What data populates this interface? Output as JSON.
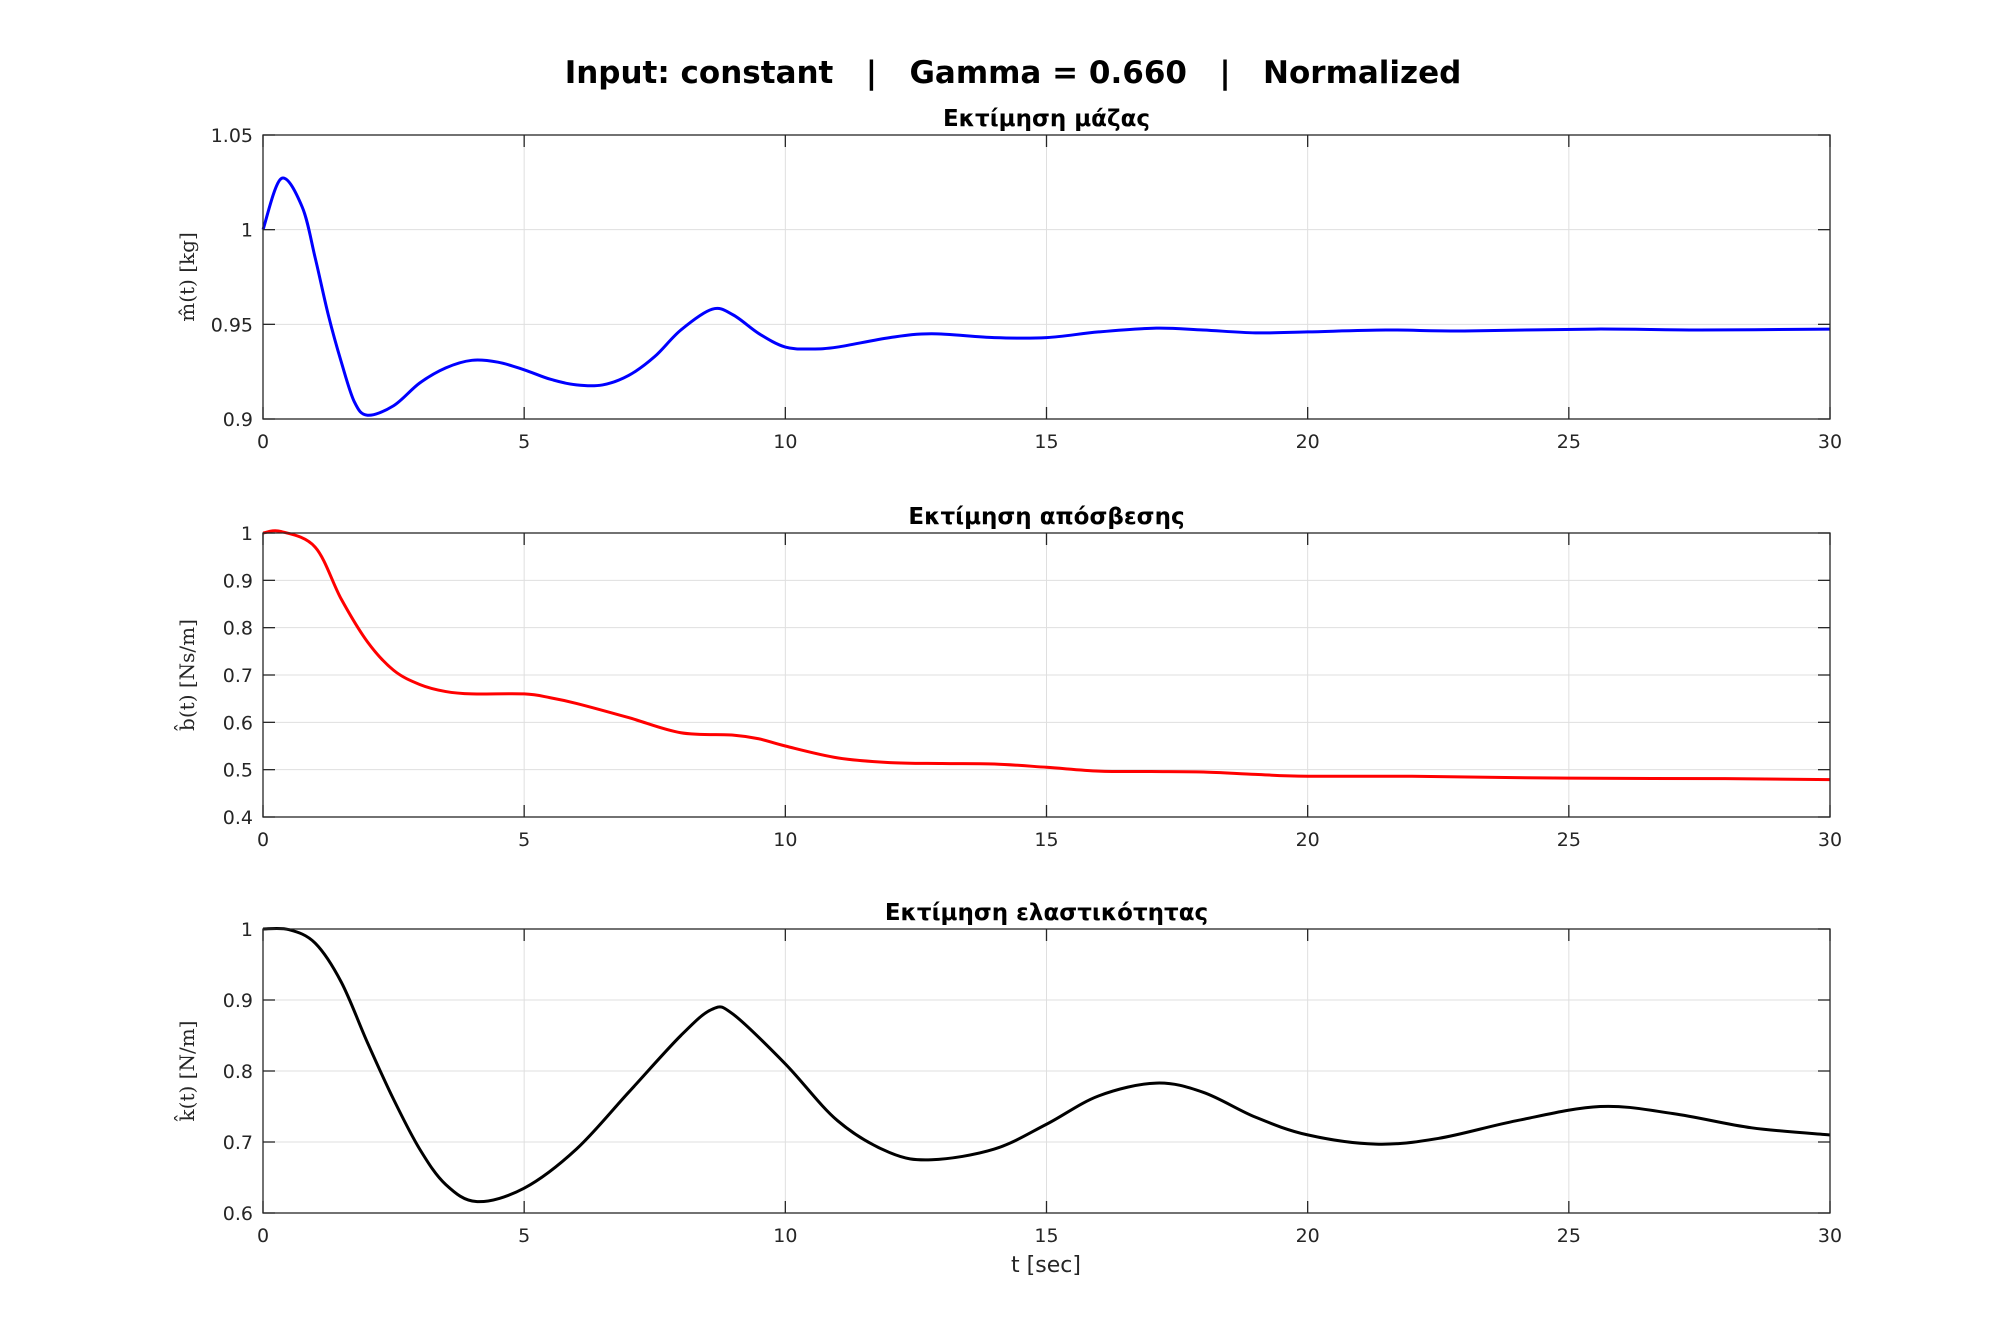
{
  "chart_data": {
    "type": "line",
    "title": "Input: constant   |   Gamma = 0.660   |   Normalized",
    "xlabel": "t [sec]",
    "xlim": [
      0,
      30
    ],
    "xticks": [
      0,
      5,
      10,
      15,
      20,
      25,
      30
    ],
    "grid": true,
    "subplots": [
      {
        "title": "Εκτίμηση μάζας",
        "ylabel": "m̂(t)  [kg]",
        "ylim": [
          0.9,
          1.05
        ],
        "yticks": [
          0.9,
          0.95,
          1,
          1.05
        ],
        "color": "#0000ff",
        "x": [
          0,
          0.35,
          0.75,
          1.0,
          1.25,
          1.5,
          1.75,
          2.0,
          2.5,
          3,
          3.5,
          4,
          4.5,
          5,
          5.5,
          6,
          6.5,
          7,
          7.5,
          8,
          8.6,
          9,
          9.5,
          10,
          10.5,
          11,
          12,
          12.8,
          14,
          15,
          16,
          17.1,
          18,
          19,
          20,
          21.5,
          23,
          25.5,
          27.5,
          30
        ],
        "y": [
          1.0,
          1.027,
          1.012,
          0.985,
          0.955,
          0.93,
          0.909,
          0.902,
          0.907,
          0.919,
          0.927,
          0.931,
          0.93,
          0.926,
          0.921,
          0.918,
          0.918,
          0.923,
          0.933,
          0.947,
          0.958,
          0.955,
          0.945,
          0.938,
          0.937,
          0.938,
          0.943,
          0.945,
          0.943,
          0.943,
          0.946,
          0.948,
          0.947,
          0.9455,
          0.946,
          0.947,
          0.9465,
          0.9475,
          0.947,
          0.9475
        ]
      },
      {
        "title": "Εκτίμηση απόσβεσης",
        "ylabel": "b̂(t)  [Ns/m]",
        "ylim": [
          0.4,
          1
        ],
        "yticks": [
          0.4,
          0.5,
          0.6,
          0.7,
          0.8,
          0.9,
          1
        ],
        "color": "#ff0000",
        "x": [
          0,
          0.35,
          1,
          1.5,
          2,
          2.5,
          3,
          3.5,
          4,
          5,
          5.5,
          6,
          7,
          8,
          9,
          9.5,
          10,
          11,
          12,
          13,
          14,
          15,
          16,
          17,
          18,
          19,
          20,
          22,
          25,
          28,
          30
        ],
        "y": [
          1.0,
          1.003,
          0.97,
          0.86,
          0.77,
          0.71,
          0.68,
          0.665,
          0.66,
          0.66,
          0.652,
          0.64,
          0.61,
          0.578,
          0.573,
          0.565,
          0.55,
          0.525,
          0.515,
          0.513,
          0.512,
          0.505,
          0.497,
          0.496,
          0.495,
          0.49,
          0.486,
          0.486,
          0.482,
          0.481,
          0.479
        ]
      },
      {
        "title": "Εκτίμηση ελαστικότητας",
        "ylabel": "k̂(t)  [N/m]",
        "ylim": [
          0.6,
          1
        ],
        "yticks": [
          0.6,
          0.7,
          0.8,
          0.9,
          1
        ],
        "color": "#000000",
        "x": [
          0,
          0.5,
          1,
          1.5,
          2,
          2.5,
          3,
          3.5,
          4.1,
          5,
          6,
          7,
          8,
          8.6,
          9,
          10,
          11,
          12,
          12.8,
          14,
          15,
          16,
          17.1,
          18,
          19,
          20,
          21.3,
          22.5,
          24,
          25.6,
          27,
          28.5,
          30
        ],
        "y": [
          1.0,
          0.999,
          0.98,
          0.925,
          0.84,
          0.76,
          0.69,
          0.64,
          0.616,
          0.635,
          0.69,
          0.77,
          0.85,
          0.887,
          0.88,
          0.81,
          0.73,
          0.685,
          0.675,
          0.69,
          0.725,
          0.765,
          0.783,
          0.77,
          0.735,
          0.71,
          0.697,
          0.705,
          0.73,
          0.75,
          0.74,
          0.72,
          0.71
        ]
      }
    ]
  }
}
